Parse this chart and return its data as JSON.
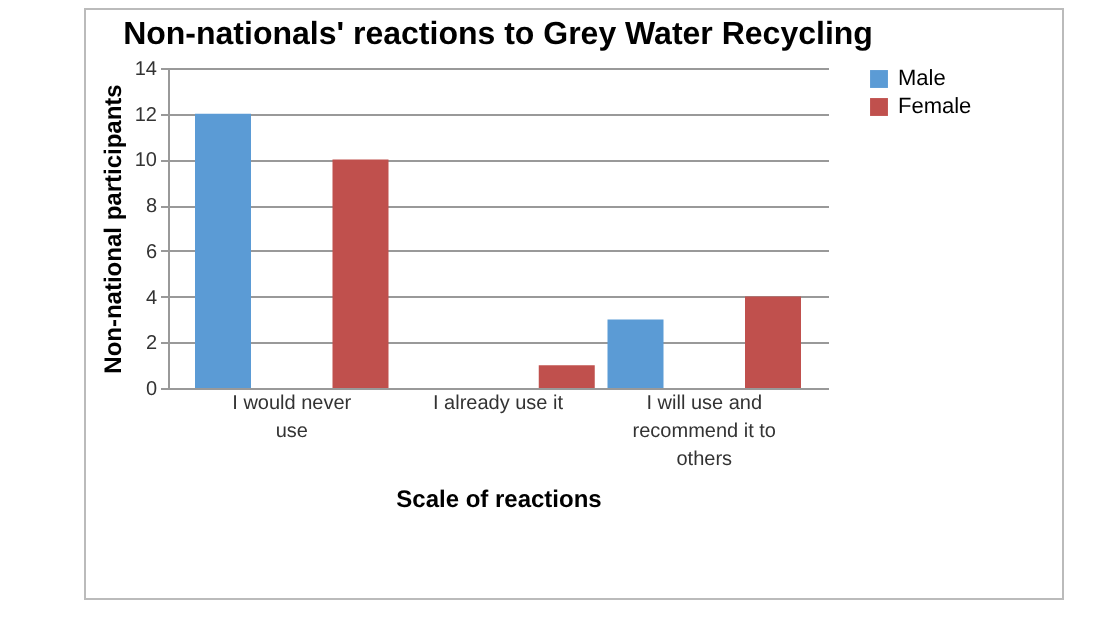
{
  "chart_data": {
    "type": "bar",
    "title": "Non-nationals' reactions to Grey Water Recycling",
    "xlabel": "Scale of reactions",
    "ylabel": "Non-national participants",
    "categories": [
      "I would never use",
      "I already use it",
      "I will use and recommend it to others"
    ],
    "series": [
      {
        "name": "Male",
        "color": "#5b9bd5",
        "values": [
          12,
          0,
          3
        ]
      },
      {
        "name": "Female",
        "color": "#c0504d",
        "values": [
          10,
          1,
          4
        ]
      }
    ],
    "ylim": [
      0,
      14
    ],
    "yticks": [
      0,
      2,
      4,
      6,
      8,
      10,
      12,
      14
    ],
    "grid": "y",
    "legend": "right"
  }
}
